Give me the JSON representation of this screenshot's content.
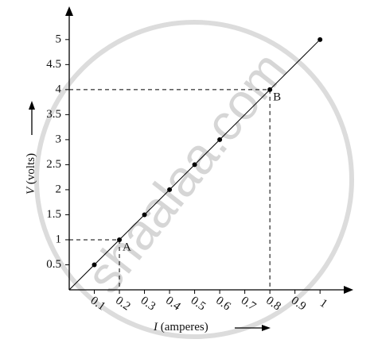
{
  "chart_data": {
    "type": "scatter",
    "x_label_symbol": "I",
    "x_label_unit": "(amperes)",
    "y_label_symbol": "V",
    "y_label_unit": "(volts)",
    "watermark": "shaalaa.com",
    "xlim": [
      0,
      1.12
    ],
    "ylim": [
      0,
      5.6
    ],
    "xticks": [
      0.1,
      0.2,
      0.3,
      0.4,
      0.5,
      0.6,
      0.7,
      0.8,
      0.9,
      1
    ],
    "yticks": [
      0.5,
      1,
      1.5,
      2,
      2.5,
      3,
      3.5,
      4,
      4.5,
      5
    ],
    "series": [
      {
        "color": "#000000",
        "x": [
          0.1,
          0.2,
          0.3,
          0.4,
          0.5,
          0.6,
          0.8,
          1
        ],
        "values": [
          0.5,
          1,
          1.5,
          2,
          2.5,
          3,
          4,
          5
        ]
      },
      {
        "color": "#000000",
        "x": [
          0,
          1
        ],
        "values": [
          0,
          5
        ]
      }
    ],
    "annotations": [
      {
        "text": "A",
        "x": 0.2,
        "y": 1
      },
      {
        "text": "B",
        "x": 0.8,
        "y": 4
      }
    ]
  }
}
